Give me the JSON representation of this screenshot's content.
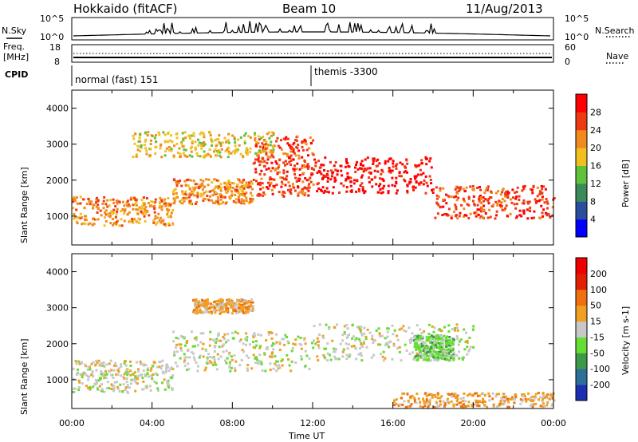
{
  "header": {
    "station": "Hokkaido (fitACF)",
    "beam": "Beam 10",
    "date": "11/Aug/2013"
  },
  "top_panels": {
    "nsky_label": "N.Sky",
    "nsearch_label": "N.Search",
    "freq_label": "Freq.",
    "freq_unit": "[MHz]",
    "nave_label": "Nave",
    "cpid_label": "CPID",
    "noise_ticks_left": [
      "10^5",
      "10^0"
    ],
    "noise_ticks_right": [
      "10^5",
      "10^0"
    ],
    "freq_ticks": [
      "18",
      "8"
    ],
    "nave_ticks": [
      "60",
      "0"
    ],
    "cpid_segments": [
      "normal (fast) 151",
      "themis -3300"
    ]
  },
  "chart_data": [
    {
      "type": "heatmap",
      "panel": "power",
      "title": "",
      "xlabel": "",
      "ylabel": "Slant Range [km]",
      "xlim": [
        0,
        24
      ],
      "ylim": [
        200,
        4500
      ],
      "yticks": [
        "1000",
        "2000",
        "3000",
        "4000"
      ],
      "colorbar_label": "Power [dB]",
      "colorbar_ticks": [
        "28",
        "24",
        "20",
        "16",
        "12",
        "8",
        "4"
      ],
      "colors": [
        "#0000ff",
        "#2b4d9e",
        "#3b8a5a",
        "#5ec23a",
        "#f0c020",
        "#f28a20",
        "#ee3a14",
        "#ff0000"
      ],
      "bands": [
        {
          "x0": 0,
          "x1": 5,
          "y0": 700,
          "y1": 1500,
          "level": 5
        },
        {
          "x0": 5,
          "x1": 9,
          "y0": 1300,
          "y1": 2000,
          "level": 5
        },
        {
          "x0": 9,
          "x1": 12,
          "y0": 1500,
          "y1": 3200,
          "level": 6
        },
        {
          "x0": 12,
          "x1": 18,
          "y0": 1600,
          "y1": 2600,
          "level": 7
        },
        {
          "x0": 18,
          "x1": 24,
          "y0": 900,
          "y1": 1800,
          "level": 6
        },
        {
          "x0": 3,
          "x1": 10,
          "y0": 2600,
          "y1": 3300,
          "level": 4
        }
      ]
    },
    {
      "type": "heatmap",
      "panel": "velocity",
      "title": "",
      "xlabel": "Time UT",
      "ylabel": "Slant Range [km]",
      "xlim": [
        0,
        24
      ],
      "ylim": [
        200,
        4500
      ],
      "xticks": [
        "00:00",
        "04:00",
        "08:00",
        "12:00",
        "16:00",
        "20:00",
        "00:00"
      ],
      "yticks": [
        "1000",
        "2000",
        "3000",
        "4000"
      ],
      "colorbar_label": "Velocity [m s-1]",
      "colorbar_ticks": [
        "200",
        "100",
        "50",
        "15",
        "-15",
        "-50",
        "-100",
        "-200"
      ],
      "colors": [
        "#1b2fb0",
        "#2e6e9a",
        "#3d9a4a",
        "#66dd33",
        "#c8c8c8",
        "#f0a020",
        "#f07010",
        "#e02000",
        "#ee0000"
      ],
      "bands": [
        {
          "x0": 0,
          "x1": 5,
          "y0": 600,
          "y1": 1500,
          "level": 4
        },
        {
          "x0": 5,
          "x1": 12,
          "y0": 1200,
          "y1": 2300,
          "level": 4
        },
        {
          "x0": 12,
          "x1": 20,
          "y0": 1500,
          "y1": 2500,
          "level": 4
        },
        {
          "x0": 17,
          "x1": 19,
          "y0": 1500,
          "y1": 2200,
          "level": 3
        },
        {
          "x0": 6,
          "x1": 9,
          "y0": 2800,
          "y1": 3200,
          "level": 5
        },
        {
          "x0": 16,
          "x1": 24,
          "y0": 200,
          "y1": 600,
          "level": 5
        }
      ]
    }
  ]
}
